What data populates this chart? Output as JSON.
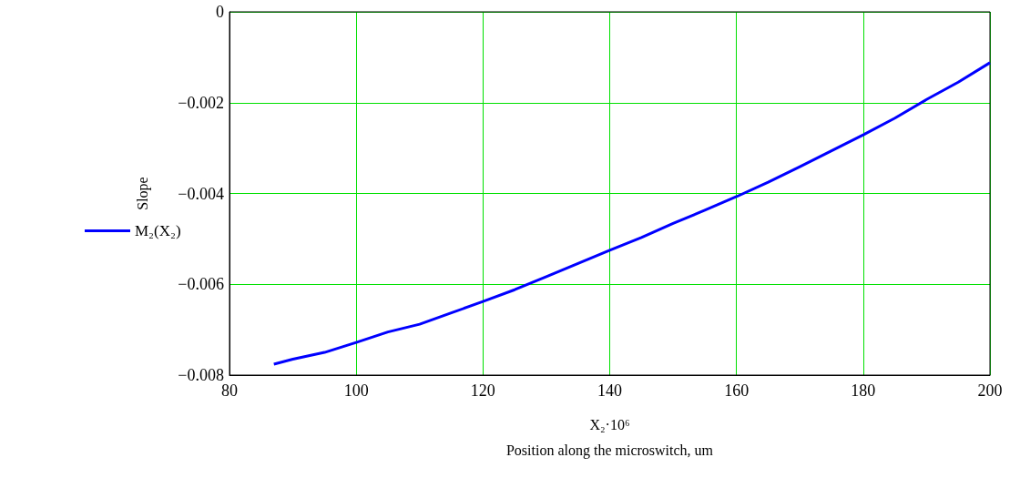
{
  "chart_data": {
    "type": "line",
    "xlabel": "X₂·10⁶\nPosition along the microswitch, um",
    "ylabel": "Slope",
    "x": [
      87,
      90,
      95,
      100,
      105,
      110,
      115,
      120,
      125,
      130,
      135,
      140,
      145,
      150,
      155,
      160,
      165,
      170,
      175,
      180,
      185,
      190,
      195,
      200
    ],
    "series": [
      {
        "name": "M₂(X₂)",
        "color": "#0000ff",
        "values": [
          -0.00776,
          -0.00765,
          -0.0075,
          -0.00728,
          -0.00705,
          -0.00688,
          -0.00663,
          -0.00638,
          -0.00612,
          -0.00583,
          -0.00554,
          -0.00525,
          -0.00497,
          -0.00466,
          -0.00437,
          -0.00407,
          -0.00375,
          -0.00341,
          -0.00306,
          -0.00271,
          -0.00234,
          -0.00193,
          -0.00155,
          -0.00112
        ]
      }
    ],
    "xlim": [
      80,
      200
    ],
    "xticks": [
      80,
      100,
      120,
      140,
      160,
      180,
      200
    ],
    "ylim": [
      -0.008,
      0
    ],
    "yticks": [
      {
        "value": -0.008,
        "label": "−0.008"
      },
      {
        "value": -0.006,
        "label": "−0.006"
      },
      {
        "value": -0.004,
        "label": "−0.004"
      },
      {
        "value": -0.002,
        "label": "−0.002"
      },
      0
    ],
    "grid": true,
    "legend": "left",
    "marker": "none",
    "line_style": "solid"
  }
}
